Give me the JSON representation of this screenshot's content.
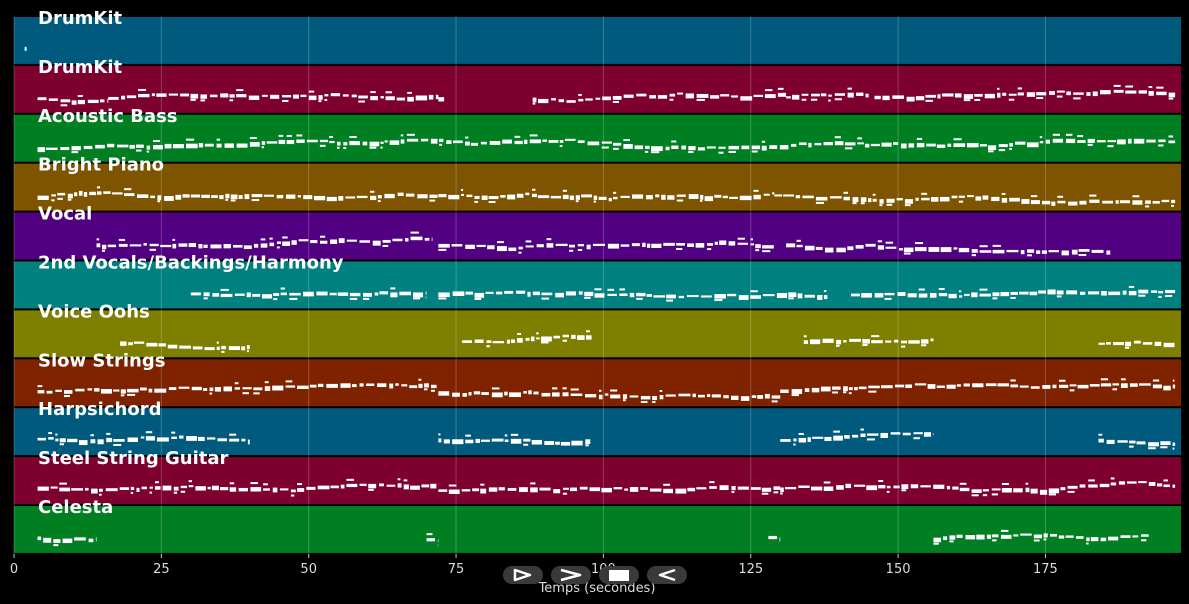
{
  "chart_data": {
    "type": "piano-roll",
    "xlabel": "Temps (secondes)",
    "xlim": [
      0,
      198
    ],
    "x_ticks": [
      0,
      25,
      50,
      75,
      100,
      125,
      150,
      175
    ],
    "x_tick_labels": [
      "0",
      "25",
      "50",
      "75",
      "100",
      "125",
      "150",
      "175"
    ],
    "grid": true,
    "tracks": [
      {
        "name": "DrumKit",
        "color": "#005a7e",
        "segments": [
          [
            1.8,
            2.0
          ]
        ]
      },
      {
        "name": "DrumKit",
        "color": "#7e002e",
        "segments": [
          [
            4,
            16
          ],
          [
            16,
            72
          ],
          [
            72,
            73
          ],
          [
            88,
            131
          ],
          [
            131,
            145
          ],
          [
            146,
            197
          ]
        ]
      },
      {
        "name": "Acoustic Bass",
        "color": "#007f22",
        "segments": [
          [
            4,
            197
          ]
        ]
      },
      {
        "name": "Bright Piano",
        "color": "#7f5400",
        "segments": [
          [
            4,
            72
          ],
          [
            72,
            129
          ],
          [
            129,
            197
          ]
        ]
      },
      {
        "name": "Vocal",
        "color": "#520082",
        "segments": [
          [
            14,
            71
          ],
          [
            72,
            129
          ],
          [
            131,
            186
          ]
        ]
      },
      {
        "name": "2nd Vocals/Backings/Harmony",
        "color": "#00807f",
        "segments": [
          [
            30,
            70
          ],
          [
            72,
            138
          ],
          [
            142,
            197
          ]
        ]
      },
      {
        "name": "Voice Oohs",
        "color": "#7e7e00",
        "segments": [
          [
            18,
            40
          ],
          [
            76,
            98
          ],
          [
            134,
            156
          ],
          [
            184,
            197
          ]
        ]
      },
      {
        "name": "Slow Strings",
        "color": "#7e2200",
        "segments": [
          [
            4,
            72
          ],
          [
            72,
            130
          ],
          [
            130,
            197
          ]
        ]
      },
      {
        "name": "Harpsichord",
        "color": "#005a7e",
        "segments": [
          [
            4,
            40
          ],
          [
            72,
            98
          ],
          [
            130,
            156
          ],
          [
            184,
            197
          ]
        ]
      },
      {
        "name": "Steel String Guitar",
        "color": "#7e002e",
        "segments": [
          [
            4,
            72
          ],
          [
            72,
            130
          ],
          [
            130,
            197
          ]
        ]
      },
      {
        "name": "Celesta",
        "color": "#007f22",
        "segments": [
          [
            4,
            14
          ],
          [
            70,
            72
          ],
          [
            128,
            130
          ],
          [
            156,
            193
          ]
        ]
      }
    ]
  },
  "controls": {
    "play_icon": "play-icon",
    "forward_icon": "fast-forward-icon",
    "stop_icon": "stop-icon",
    "rewind_icon": "rewind-icon"
  }
}
